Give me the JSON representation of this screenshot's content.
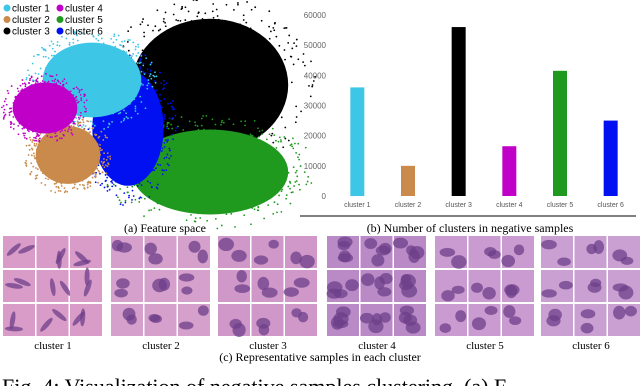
{
  "chart_data": {
    "type": "bar",
    "title": "(b) Number of clusters in negative samples",
    "categories": [
      "cluster 1",
      "cluster 2",
      "cluster 3",
      "cluster 4",
      "cluster 5",
      "cluster 6"
    ],
    "values": [
      36000,
      10000,
      56000,
      16500,
      41500,
      25000
    ],
    "colors": [
      "#3ec6e6",
      "#c98a4b",
      "#000000",
      "#c000c8",
      "#1f9a1f",
      "#0010f0"
    ],
    "ylim": [
      0,
      60000
    ],
    "yticks": [
      0,
      10000,
      20000,
      30000,
      40000,
      50000,
      60000
    ],
    "grid": false
  },
  "panels": {
    "a": {
      "caption": "(a) Feature space",
      "legend": [
        "cluster 1",
        "cluster 4",
        "cluster 2",
        "cluster 5",
        "cluster 3",
        "cluster 6"
      ]
    },
    "c": {
      "caption": "(c) Representative samples in each cluster",
      "labels": [
        "cluster 1",
        "cluster 2",
        "cluster 3",
        "cluster 4",
        "cluster 5",
        "cluster 6"
      ]
    }
  },
  "figure_caption": "Fig. 4: Visualization of negative samples clustering. (a) F"
}
